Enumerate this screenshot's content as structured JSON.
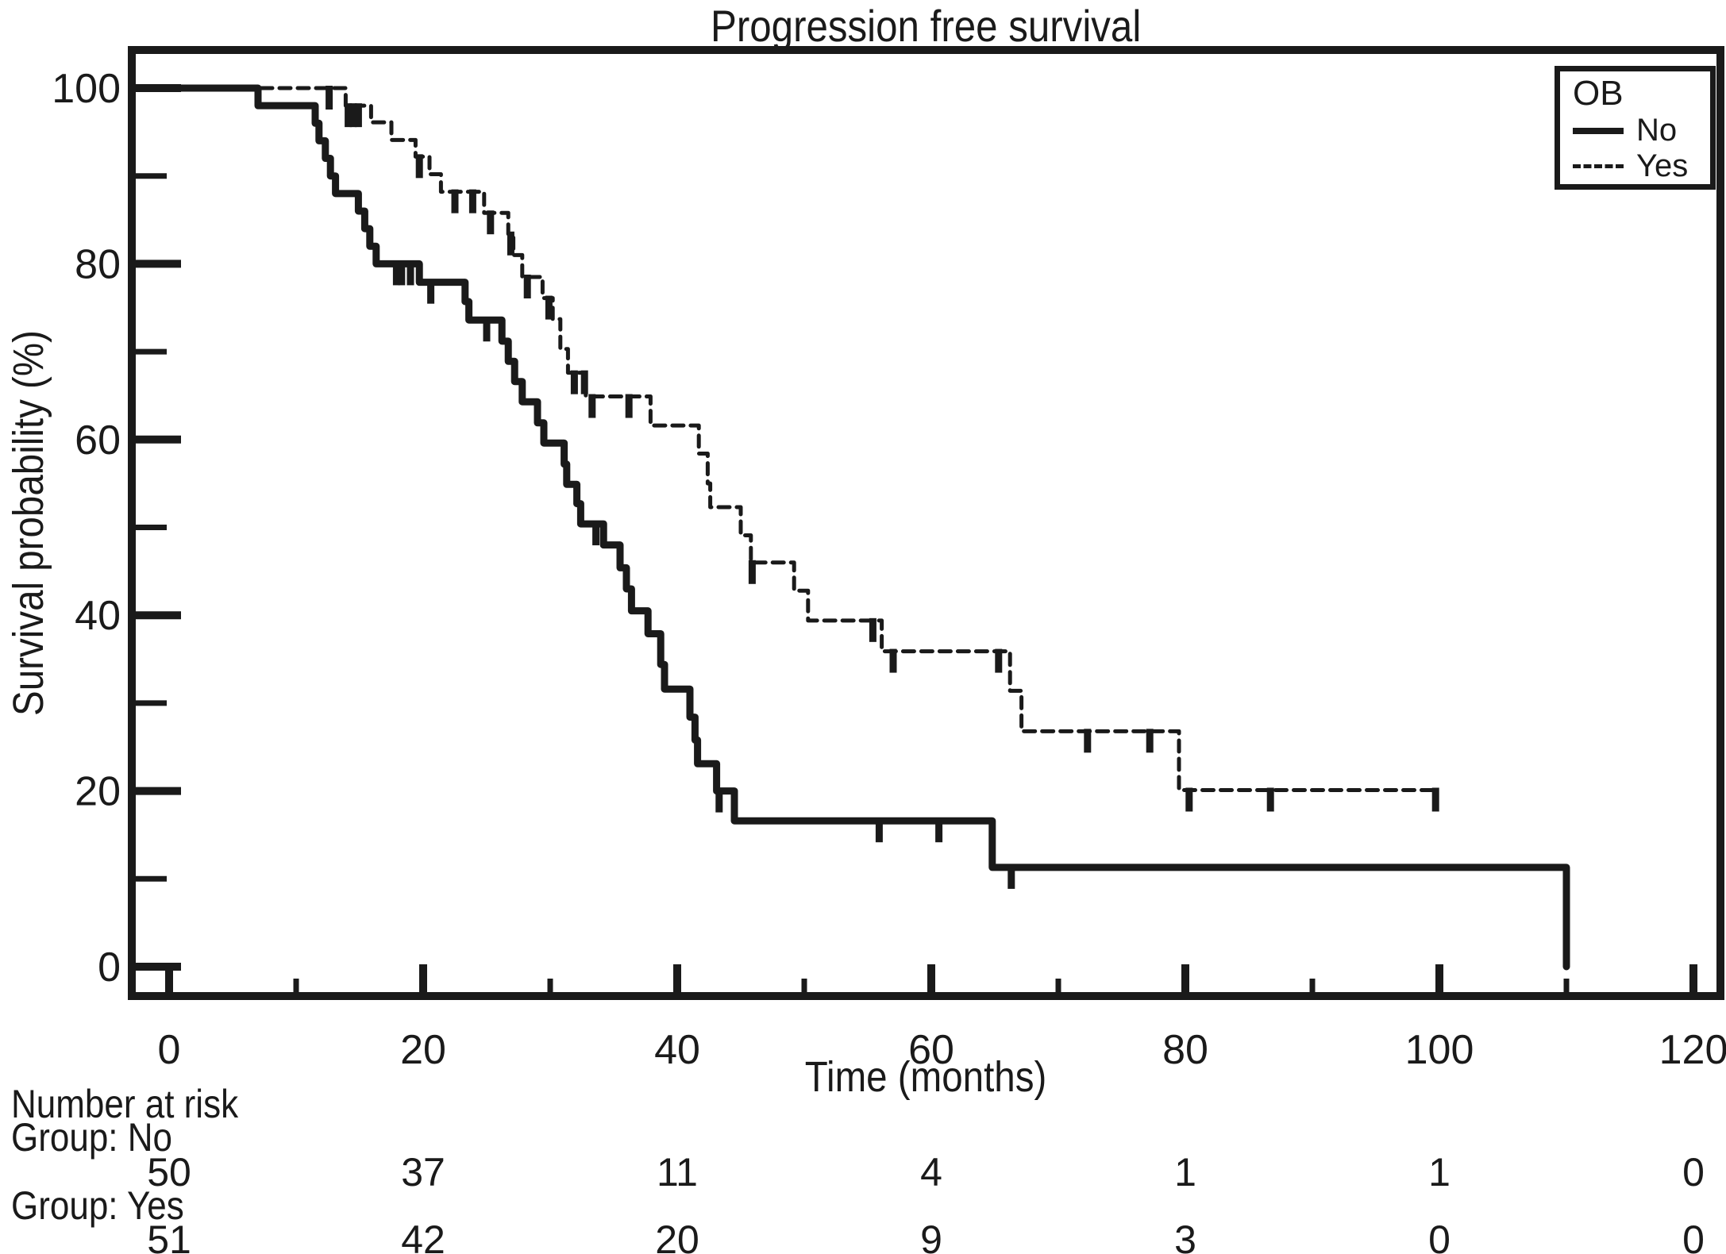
{
  "title": "Progression free survival",
  "colors": {
    "ink": "#1a1a1a",
    "background": "#ffffff"
  },
  "axes": {
    "x": {
      "label": "Time (months)",
      "ticks": [
        0,
        20,
        40,
        60,
        80,
        100,
        120
      ],
      "minor_ticks": [
        10,
        30,
        50,
        70,
        90,
        110
      ],
      "range": [
        0,
        120
      ]
    },
    "y": {
      "label": "Survival probability (%)",
      "ticks": [
        0,
        20,
        40,
        60,
        80,
        100
      ],
      "minor_ticks": [
        10,
        30,
        50,
        70,
        90
      ],
      "range": [
        0,
        100
      ]
    }
  },
  "legend": {
    "title": "OB",
    "entries": [
      {
        "label": "No",
        "style": "solid"
      },
      {
        "label": "Yes",
        "style": "dashed"
      }
    ]
  },
  "chart_data": {
    "type": "line",
    "subtype": "kaplan-meier-step",
    "title": "Progression free survival",
    "xlabel": "Time (months)",
    "ylabel": "Survival probability (%)",
    "xlim": [
      0,
      120
    ],
    "ylim": [
      0,
      100
    ],
    "grid": false,
    "legend_position": "top-right",
    "series": [
      {
        "name": "Yes",
        "style": "dashed",
        "steps": [
          [
            0,
            100
          ],
          [
            13.9,
            98
          ],
          [
            15.9,
            96.1
          ],
          [
            17.5,
            94.1
          ],
          [
            19.4,
            92.2
          ],
          [
            20.5,
            90.2
          ],
          [
            21.4,
            88.2
          ],
          [
            24.8,
            85.8
          ],
          [
            26.7,
            83.4
          ],
          [
            27.1,
            81.0
          ],
          [
            27.8,
            78.5
          ],
          [
            29.4,
            76.1
          ],
          [
            30.2,
            73.7
          ],
          [
            30.8,
            70.3
          ],
          [
            31.4,
            67.6
          ],
          [
            32.8,
            64.9
          ],
          [
            37.9,
            61.6
          ],
          [
            41.7,
            58.4
          ],
          [
            42.4,
            55.0
          ],
          [
            42.6,
            52.3
          ],
          [
            45.0,
            49.1
          ],
          [
            45.8,
            46.0
          ],
          [
            49.2,
            42.8
          ],
          [
            50.3,
            39.4
          ],
          [
            56.1,
            35.9
          ],
          [
            66.2,
            31.4
          ],
          [
            67.1,
            26.8
          ],
          [
            79.5,
            20.1
          ]
        ],
        "end_time": 100,
        "censor_marks": [
          [
            12.6,
            100
          ],
          [
            14.1,
            98
          ],
          [
            14.5,
            98
          ],
          [
            14.9,
            98
          ],
          [
            19.7,
            92.2
          ],
          [
            22.5,
            88.2
          ],
          [
            23.9,
            88.2
          ],
          [
            25.3,
            85.8
          ],
          [
            26.9,
            83.4
          ],
          [
            28.2,
            78.5
          ],
          [
            29.9,
            76.1
          ],
          [
            31.9,
            67.6
          ],
          [
            32.7,
            67.6
          ],
          [
            33.3,
            64.9
          ],
          [
            36.2,
            64.9
          ],
          [
            45.9,
            46.0
          ],
          [
            55.4,
            39.4
          ],
          [
            57.0,
            35.9
          ],
          [
            65.3,
            35.9
          ],
          [
            72.3,
            26.8
          ],
          [
            77.2,
            26.8
          ],
          [
            80.3,
            20.1
          ],
          [
            86.7,
            20.1
          ],
          [
            99.7,
            20.1
          ]
        ]
      },
      {
        "name": "No",
        "style": "solid",
        "steps": [
          [
            0,
            100
          ],
          [
            7,
            98
          ],
          [
            11.5,
            96
          ],
          [
            11.8,
            94
          ],
          [
            12.3,
            92
          ],
          [
            12.7,
            90
          ],
          [
            13.1,
            88
          ],
          [
            14.9,
            86
          ],
          [
            15.4,
            84
          ],
          [
            15.8,
            82
          ],
          [
            16.3,
            80
          ],
          [
            19.7,
            77.9
          ],
          [
            23.3,
            75.7
          ],
          [
            23.6,
            73.6
          ],
          [
            26.2,
            71.2
          ],
          [
            26.7,
            68.9
          ],
          [
            27.2,
            66.6
          ],
          [
            27.8,
            64.3
          ],
          [
            29.0,
            61.9
          ],
          [
            29.5,
            59.6
          ],
          [
            31.1,
            57.2
          ],
          [
            31.3,
            54.9
          ],
          [
            32.1,
            52.7
          ],
          [
            32.4,
            50.4
          ],
          [
            34.2,
            48.0
          ],
          [
            35.5,
            45.4
          ],
          [
            36.0,
            43.0
          ],
          [
            36.4,
            40.5
          ],
          [
            37.7,
            37.9
          ],
          [
            38.7,
            34.4
          ],
          [
            39.0,
            31.6
          ],
          [
            41.0,
            28.4
          ],
          [
            41.4,
            25.8
          ],
          [
            41.6,
            23.1
          ],
          [
            43.1,
            20.0
          ],
          [
            44.5,
            16.6
          ],
          [
            64.8,
            11.3
          ],
          [
            110,
            0
          ]
        ],
        "end_time": 110,
        "censor_marks": [
          [
            17.9,
            80
          ],
          [
            18.3,
            80
          ],
          [
            19.0,
            80
          ],
          [
            20.6,
            77.9
          ],
          [
            25.0,
            73.6
          ],
          [
            33.6,
            50.4
          ],
          [
            43.3,
            20.0
          ],
          [
            55.9,
            16.6
          ],
          [
            60.6,
            16.6
          ],
          [
            66.3,
            11.3
          ]
        ]
      }
    ],
    "risk_table": {
      "heading": "Number at risk",
      "time_points": [
        0,
        20,
        40,
        60,
        80,
        100,
        120
      ],
      "rows": [
        {
          "label": "Group: No",
          "values": [
            "50",
            "37",
            "11",
            "4",
            "1",
            "1",
            "0"
          ]
        },
        {
          "label": "Group: Yes",
          "values": [
            "51",
            "42",
            "20",
            "9",
            "3",
            "0",
            "0"
          ]
        }
      ]
    }
  }
}
